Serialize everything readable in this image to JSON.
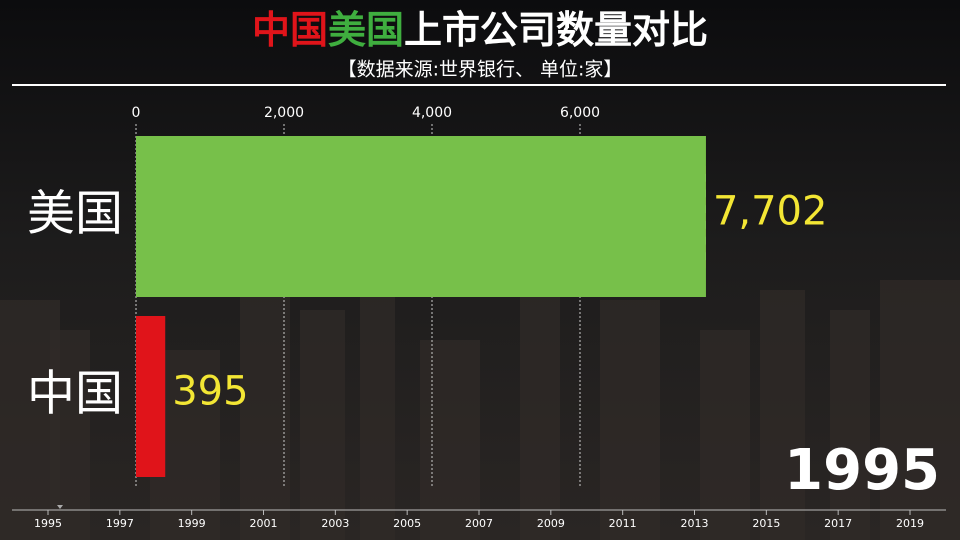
{
  "title_parts": [
    {
      "text": "中国",
      "color": "#e0141a"
    },
    {
      "text": "美国",
      "color": "#3fae3f"
    },
    {
      "text": "上市公司数量对比",
      "color": "#ffffff"
    }
  ],
  "subtitle": "【数据来源:世界银行、 单位:家】",
  "chart_data": {
    "type": "bar",
    "orientation": "horizontal",
    "categories": [
      "美国",
      "中国"
    ],
    "values": [
      7702,
      395
    ],
    "value_labels": [
      "7,702",
      "395"
    ],
    "colors": [
      "#77c04a",
      "#e0141a"
    ],
    "xlim": [
      0,
      8000
    ],
    "xticks": [
      0,
      {
        "value": 2000,
        "label": "2,000"
      },
      {
        "value": 4000,
        "label": "4,000"
      },
      {
        "value": 6000,
        "label": "6,000"
      }
    ],
    "grid": true
  },
  "year": "1995",
  "timeline": {
    "xlim": [
      1995,
      2019
    ],
    "current": 1995,
    "ticks": [
      1995,
      1997,
      1999,
      2001,
      2003,
      2005,
      2007,
      2009,
      2011,
      2013,
      2015,
      2017,
      2019
    ]
  }
}
